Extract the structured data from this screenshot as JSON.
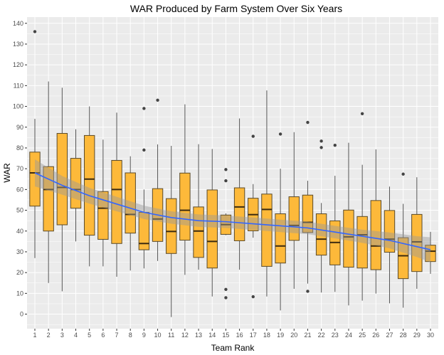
{
  "chart_data": {
    "type": "boxplot",
    "title": "WAR Produced by Farm System Over Six Years",
    "xlabel": "Team Rank",
    "ylabel": "WAR",
    "ylim": [
      -7,
      143
    ],
    "yticks": [
      0,
      10,
      20,
      30,
      40,
      50,
      60,
      70,
      80,
      90,
      100,
      110,
      120,
      130,
      140
    ],
    "categories": [
      "1",
      "2",
      "3",
      "4",
      "5",
      "6",
      "7",
      "8",
      "9",
      "10",
      "11",
      "12",
      "13",
      "14",
      "15",
      "16",
      "17",
      "18",
      "19",
      "20",
      "21",
      "22",
      "23",
      "24",
      "25",
      "26",
      "27",
      "28",
      "29",
      "30"
    ],
    "grid": true,
    "colors": {
      "box_fill": "#FDB93A",
      "box_stroke": "#5a4a2a",
      "smooth_line": "#3366FF",
      "band": "#999999",
      "panel": "#EBEBEB",
      "grid": "#FFFFFF"
    },
    "boxes": [
      {
        "min": 27,
        "q1": 52,
        "median": 68,
        "q3": 78,
        "max": 94,
        "outliers": [
          136
        ]
      },
      {
        "min": 15,
        "q1": 40,
        "median": 60,
        "q3": 71,
        "max": 112,
        "outliers": []
      },
      {
        "min": 11,
        "q1": 43,
        "median": 61,
        "q3": 87,
        "max": 109,
        "outliers": []
      },
      {
        "min": 35,
        "q1": 51,
        "median": 60,
        "q3": 75,
        "max": 89,
        "outliers": []
      },
      {
        "min": 23,
        "q1": 38,
        "median": 65,
        "q3": 86,
        "max": 100,
        "outliers": []
      },
      {
        "min": 23,
        "q1": 36,
        "median": 51,
        "q3": 59,
        "max": 84,
        "outliers": []
      },
      {
        "min": 18,
        "q1": 34,
        "median": 60,
        "q3": 74,
        "max": 97,
        "outliers": []
      },
      {
        "min": 21,
        "q1": 39,
        "median": 48,
        "q3": 68,
        "max": 76,
        "outliers": []
      },
      {
        "min": 22,
        "q1": 31,
        "median": 34,
        "q3": 49,
        "max": 60,
        "outliers": [
          79,
          99
        ]
      },
      {
        "min": 25.6,
        "q1": 35,
        "median": 45.8,
        "q3": 60.4,
        "max": 81.7,
        "outliers": [
          103
        ]
      },
      {
        "min": -1.4,
        "q1": 29.2,
        "median": 39.8,
        "q3": 55.6,
        "max": 81,
        "outliers": []
      },
      {
        "min": 18.9,
        "q1": 35.6,
        "median": 50,
        "q3": 67.9,
        "max": 101,
        "outliers": []
      },
      {
        "min": 21.4,
        "q1": 27.3,
        "median": 40,
        "q3": 51.6,
        "max": 81.8,
        "outliers": []
      },
      {
        "min": 8.5,
        "q1": 22.2,
        "median": 35,
        "q3": 59.8,
        "max": 79.5,
        "outliers": []
      },
      {
        "min": 38,
        "q1": 38.4,
        "median": 43.1,
        "q3": 47.7,
        "max": 48.5,
        "outliers": [
          69.6,
          64.2,
          11.9,
          7.9
        ]
      },
      {
        "min": 21.4,
        "q1": 35.3,
        "median": 51.6,
        "q3": 60.8,
        "max": 94.2,
        "outliers": []
      },
      {
        "min": 36.8,
        "q1": 40.1,
        "median": 47.9,
        "q3": 55.8,
        "max": 62.6,
        "outliers": [
          85.6,
          8.4
        ]
      },
      {
        "min": 8.5,
        "q1": 23,
        "median": 50.4,
        "q3": 57.8,
        "max": 107.7,
        "outliers": []
      },
      {
        "min": 1.8,
        "q1": 24.6,
        "median": 32.8,
        "q3": 48.3,
        "max": 70,
        "outliers": [
          86.7
        ]
      },
      {
        "min": 12.2,
        "q1": 35.5,
        "median": 42.7,
        "q3": 56.5,
        "max": 87.6,
        "outliers": []
      },
      {
        "min": 14.7,
        "q1": 39.3,
        "median": 44.2,
        "q3": 57.3,
        "max": 64.2,
        "outliers": [
          92.3,
          11
        ]
      },
      {
        "min": 10.4,
        "q1": 28.4,
        "median": 36.1,
        "q3": 48.3,
        "max": 53.5,
        "outliers": [
          83.3,
          80.2
        ]
      },
      {
        "min": 10.7,
        "q1": 23.7,
        "median": 34.5,
        "q3": 44.9,
        "max": 66.6,
        "outliers": [
          81.3
        ]
      },
      {
        "min": 4.2,
        "q1": 22.6,
        "median": 37.2,
        "q3": 50.1,
        "max": 82.5,
        "outliers": []
      },
      {
        "min": 6.5,
        "q1": 22.2,
        "median": 38.2,
        "q3": 47,
        "max": 71.9,
        "outliers": [
          96.5
        ]
      },
      {
        "min": 9.9,
        "q1": 21.4,
        "median": 32.8,
        "q3": 54.7,
        "max": 79.3,
        "outliers": []
      },
      {
        "min": 5.2,
        "q1": 29.8,
        "median": 36.1,
        "q3": 49.9,
        "max": 61.4,
        "outliers": []
      },
      {
        "min": 3.1,
        "q1": 17.1,
        "median": 28.1,
        "q3": 36.8,
        "max": 53.1,
        "outliers": [
          67.4
        ]
      },
      {
        "min": 12.2,
        "q1": 20.5,
        "median": 34.8,
        "q3": 48,
        "max": 65.9,
        "outliers": []
      },
      {
        "min": 19.4,
        "q1": 25.3,
        "median": 30.3,
        "q3": 33.2,
        "max": 39.6,
        "outliers": []
      }
    ],
    "smooth": {
      "x": [
        1,
        3,
        5,
        7,
        9,
        11,
        13,
        15,
        17,
        19,
        21,
        23,
        25,
        27,
        29,
        30
      ],
      "y": [
        68,
        62,
        57,
        53,
        49,
        46.5,
        45,
        44.5,
        43.5,
        42.5,
        41.5,
        39.5,
        37.5,
        35.5,
        32.5,
        31
      ],
      "se": [
        6.5,
        4.5,
        3.8,
        3.5,
        3.2,
        3,
        3,
        3,
        3,
        3,
        3,
        3,
        3.2,
        3.8,
        5,
        6
      ]
    }
  }
}
